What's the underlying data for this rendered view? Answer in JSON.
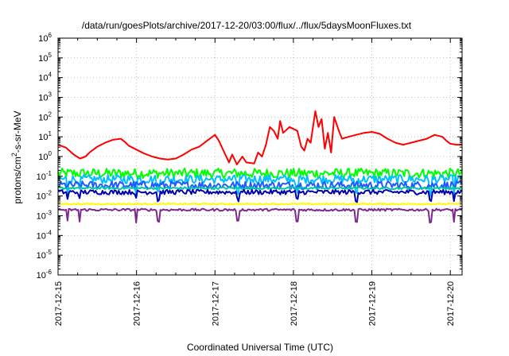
{
  "chart_data": {
    "type": "line",
    "title": "/data/run/goesPlots/archive/2017-12-20/03:00/flux/../flux/5daysMoonFluxes.txt",
    "xlabel": "Coordinated Universal Time (UTC)",
    "ylabel": {
      "prefix": "protons/cm",
      "sup": "2",
      "suffix": "-s-sr-MeV"
    },
    "yscale": "log",
    "ylim_exp": [
      -6,
      6
    ],
    "y_ticks": [
      {
        "base": "10",
        "exp": "-6"
      },
      {
        "base": "10",
        "exp": "-5"
      },
      {
        "base": "10",
        "exp": "-4"
      },
      {
        "base": "10",
        "exp": "-3"
      },
      {
        "base": "10",
        "exp": "-2"
      },
      {
        "base": "10",
        "exp": "-1"
      },
      {
        "base": "10",
        "exp": "0"
      },
      {
        "base": "10",
        "exp": "1"
      },
      {
        "base": "10",
        "exp": "2"
      },
      {
        "base": "10",
        "exp": "3"
      },
      {
        "base": "10",
        "exp": "4"
      },
      {
        "base": "10",
        "exp": "5"
      },
      {
        "base": "10",
        "exp": "6"
      }
    ],
    "x_ticks": [
      "2017-12-15",
      "2017-12-16",
      "2017-12-17",
      "2017-12-18",
      "2017-12-19",
      "2017-12-20"
    ],
    "xlim_days": [
      0,
      5.15
    ],
    "grid": true,
    "series": [
      {
        "color": "#ff0000",
        "baseline": 0.55,
        "noise": 0.05,
        "spikes": 0.0,
        "points": [
          [
            0.0,
            0.6
          ],
          [
            0.1,
            0.45
          ],
          [
            0.2,
            0.1
          ],
          [
            0.28,
            -0.1
          ],
          [
            0.35,
            0.0
          ],
          [
            0.4,
            0.2
          ],
          [
            0.5,
            0.5
          ],
          [
            0.6,
            0.7
          ],
          [
            0.7,
            0.85
          ],
          [
            0.8,
            0.9
          ],
          [
            0.85,
            0.75
          ],
          [
            0.9,
            0.55
          ],
          [
            1.0,
            0.35
          ],
          [
            1.1,
            0.15
          ],
          [
            1.2,
            0.0
          ],
          [
            1.3,
            -0.1
          ],
          [
            1.4,
            -0.15
          ],
          [
            1.5,
            -0.1
          ],
          [
            1.6,
            0.1
          ],
          [
            1.7,
            0.35
          ],
          [
            1.8,
            0.5
          ],
          [
            1.9,
            0.8
          ],
          [
            2.0,
            1.1
          ],
          [
            2.05,
            0.8
          ],
          [
            2.12,
            0.2
          ],
          [
            2.18,
            -0.3
          ],
          [
            2.22,
            0.1
          ],
          [
            2.28,
            -0.4
          ],
          [
            2.35,
            0.0
          ],
          [
            2.4,
            -0.3
          ],
          [
            2.5,
            -0.35
          ],
          [
            2.55,
            0.2
          ],
          [
            2.6,
            0.0
          ],
          [
            2.65,
            0.6
          ],
          [
            2.7,
            1.5
          ],
          [
            2.75,
            1.3
          ],
          [
            2.8,
            0.9
          ],
          [
            2.83,
            1.8
          ],
          [
            2.87,
            1.2
          ],
          [
            2.95,
            1.5
          ],
          [
            3.05,
            1.3
          ],
          [
            3.1,
            0.5
          ],
          [
            3.14,
            0.3
          ],
          [
            3.18,
            0.9
          ],
          [
            3.22,
            0.7
          ],
          [
            3.28,
            2.3
          ],
          [
            3.32,
            1.5
          ],
          [
            3.36,
            1.9
          ],
          [
            3.4,
            0.4
          ],
          [
            3.44,
            1.2
          ],
          [
            3.48,
            0.2
          ],
          [
            3.52,
            2.0
          ],
          [
            3.58,
            1.3
          ],
          [
            3.62,
            0.9
          ],
          [
            3.7,
            1.0
          ],
          [
            3.8,
            1.1
          ],
          [
            3.9,
            1.2
          ],
          [
            4.0,
            1.25
          ],
          [
            4.1,
            1.15
          ],
          [
            4.2,
            0.9
          ],
          [
            4.3,
            0.7
          ],
          [
            4.4,
            0.6
          ],
          [
            4.5,
            0.7
          ],
          [
            4.6,
            0.8
          ],
          [
            4.7,
            0.9
          ],
          [
            4.8,
            1.1
          ],
          [
            4.9,
            1.0
          ],
          [
            4.95,
            0.8
          ],
          [
            5.0,
            0.65
          ],
          [
            5.08,
            0.6
          ],
          [
            5.15,
            0.6
          ]
        ]
      },
      {
        "color": "#00ff00",
        "baseline": -0.85,
        "noise": 0.25,
        "spikes": 0.0,
        "points": []
      },
      {
        "color": "#00bfff",
        "baseline": -1.15,
        "noise": 0.22,
        "spikes": 0.7,
        "points": []
      },
      {
        "color": "#1e5aff",
        "baseline": -1.45,
        "noise": 0.2,
        "spikes": 0.0,
        "points": []
      },
      {
        "color": "#00c8a0",
        "baseline": -1.6,
        "noise": 0.06,
        "spikes": 0.0,
        "points": []
      },
      {
        "color": "#0000b0",
        "baseline": -1.8,
        "noise": 0.12,
        "spikes": 0.4,
        "points": []
      },
      {
        "color": "#ffff00",
        "baseline": -2.4,
        "noise": 0.03,
        "spikes": 0.0,
        "points": []
      },
      {
        "color": "#7a2a8a",
        "baseline": -2.7,
        "noise": 0.06,
        "spikes": 0.6,
        "points": []
      }
    ]
  }
}
